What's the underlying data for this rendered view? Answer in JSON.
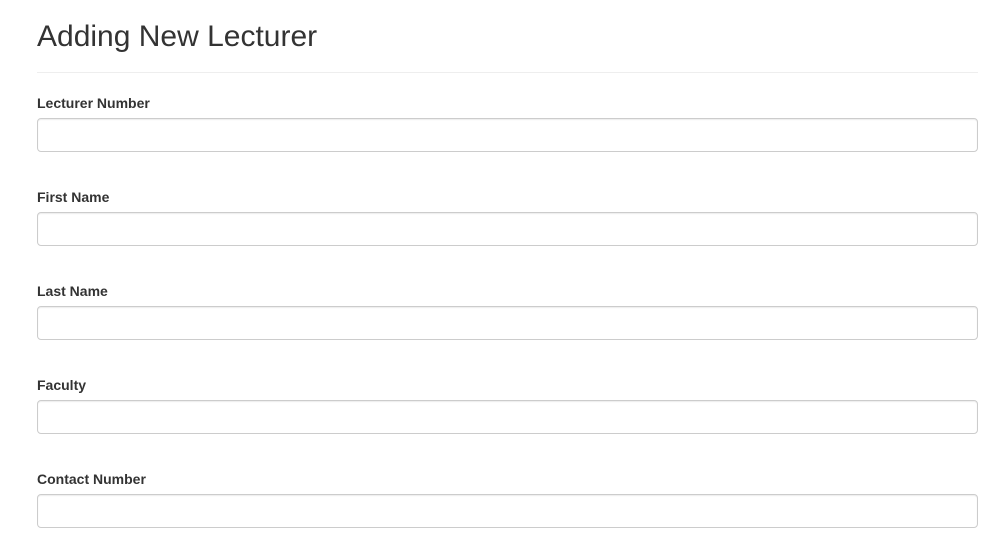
{
  "page": {
    "title": "Adding New Lecturer"
  },
  "form": {
    "fields": [
      {
        "label": "Lecturer Number",
        "value": "",
        "placeholder": ""
      },
      {
        "label": "First Name",
        "value": "",
        "placeholder": ""
      },
      {
        "label": "Last Name",
        "value": "",
        "placeholder": ""
      },
      {
        "label": "Faculty",
        "value": "",
        "placeholder": ""
      },
      {
        "label": "Contact Number",
        "value": "",
        "placeholder": ""
      }
    ]
  },
  "colors": {
    "text": "#333333",
    "input_border": "#cccccc",
    "divider": "#eeeeee",
    "background": "#ffffff"
  }
}
